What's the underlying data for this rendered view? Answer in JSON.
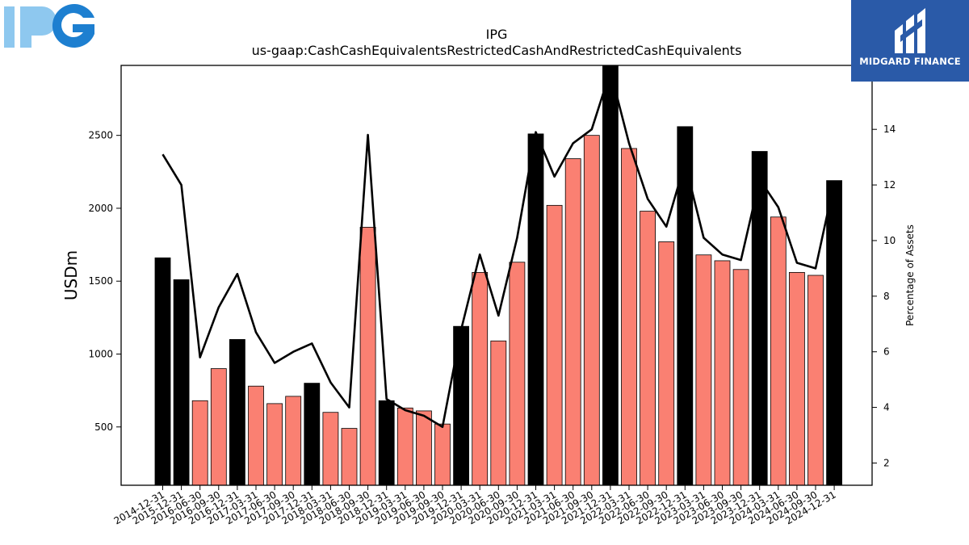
{
  "logos": {
    "left_brand": "IPG",
    "right_brand": "MIDGARD FINANCE"
  },
  "colors": {
    "highlight_bar": "#000000",
    "regular_bar": "#fa8072",
    "line": "#000000",
    "ipg_light": "#8ec8ef",
    "ipg_dark": "#1d7fd0",
    "midgard_bg": "#2a5aa8"
  },
  "chart_data": {
    "type": "bar",
    "title": "IPG",
    "subtitle": "us-gaap:CashCashEquivalentsRestrictedCashAndRestrictedCashEquivalents",
    "ylabel": "USDm",
    "y2label": "Percentage of Assets",
    "ylim": [
      100,
      2980
    ],
    "y2lim": [
      1.2,
      16.3
    ],
    "yticks": [
      500,
      1000,
      1500,
      2000,
      2500
    ],
    "y2ticks": [
      2,
      4,
      6,
      8,
      10,
      12,
      14
    ],
    "grid": false,
    "categories": [
      "2014-12-31",
      "2015-12-31",
      "2016-06-30",
      "2016-09-30",
      "2016-12-31",
      "2017-03-31",
      "2017-06-30",
      "2017-09-30",
      "2017-12-31",
      "2018-03-31",
      "2018-06-30",
      "2018-09-30",
      "2018-12-31",
      "2019-03-31",
      "2019-06-30",
      "2019-09-30",
      "2019-12-31",
      "2020-03-31",
      "2020-06-30",
      "2020-09-30",
      "2020-12-31",
      "2021-03-31",
      "2021-06-30",
      "2021-09-30",
      "2021-12-31",
      "2022-03-31",
      "2022-06-30",
      "2022-09-30",
      "2022-12-31",
      "2023-03-31",
      "2023-06-30",
      "2023-09-30",
      "2023-12-31",
      "2024-03-31",
      "2024-06-30",
      "2024-09-30",
      "2024-12-31"
    ],
    "series": [
      {
        "type": "bar",
        "values": [
          1660,
          1510,
          680,
          900,
          1100,
          780,
          660,
          710,
          800,
          600,
          490,
          1870,
          680,
          630,
          610,
          520,
          1190,
          1560,
          1090,
          1630,
          2510,
          2020,
          2340,
          2500,
          2980,
          2410,
          1980,
          1770,
          2560,
          1680,
          1640,
          1580,
          2390,
          1940,
          1560,
          1540,
          2190
        ],
        "highlight": [
          true,
          true,
          false,
          false,
          true,
          false,
          false,
          false,
          true,
          false,
          false,
          false,
          true,
          false,
          false,
          false,
          true,
          false,
          false,
          false,
          true,
          false,
          false,
          false,
          true,
          false,
          false,
          false,
          true,
          false,
          false,
          false,
          true,
          false,
          false,
          false,
          true
        ]
      },
      {
        "type": "line",
        "axis": "right",
        "values": [
          13.1,
          12.0,
          5.8,
          7.6,
          8.8,
          6.7,
          5.6,
          6.0,
          6.3,
          4.9,
          4.0,
          13.8,
          4.3,
          3.9,
          3.7,
          3.3,
          6.8,
          9.5,
          7.3,
          10.1,
          13.9,
          12.3,
          13.5,
          14.0,
          16.1,
          13.5,
          11.5,
          10.5,
          12.8,
          10.1,
          9.5,
          9.3,
          12.2,
          11.2,
          9.2,
          9.0,
          12.1
        ]
      }
    ]
  }
}
